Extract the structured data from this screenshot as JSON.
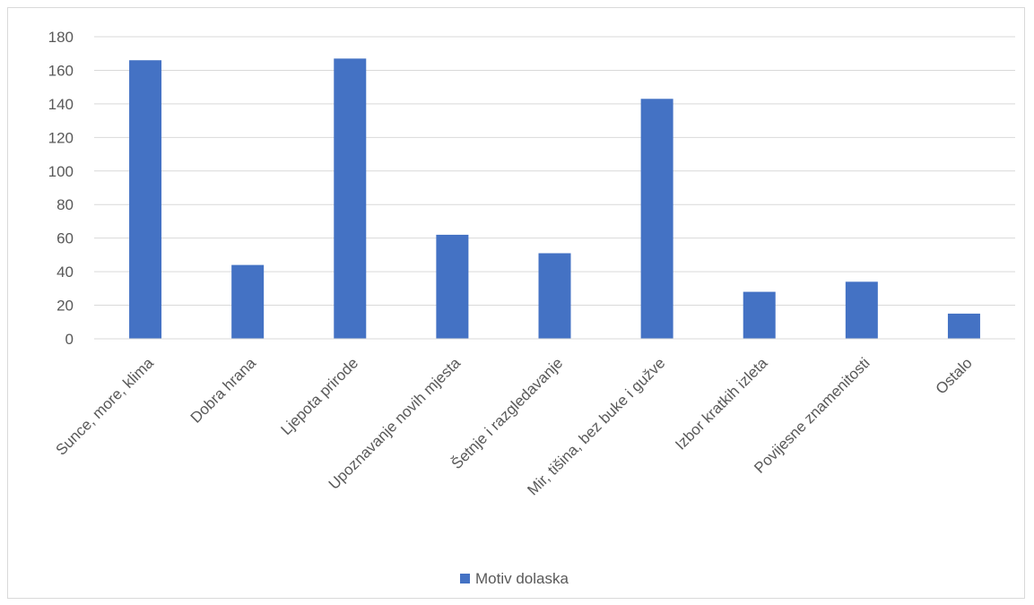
{
  "chart_data": {
    "type": "bar",
    "categories": [
      "Sunce, more, klima",
      "Dobra hrana",
      "Ljepota prirode",
      "Upoznavanje novih mjesta",
      "Šetnje i razgledavanje",
      "Mir, tišina, bez buke i gužve",
      "Izbor kratkih izleta",
      "Povijesne znamenitosti",
      "Ostalo"
    ],
    "series": [
      {
        "name": "Motiv dolaska",
        "values": [
          166,
          44,
          167,
          62,
          51,
          143,
          28,
          34,
          15
        ],
        "color": "#4472c4"
      }
    ],
    "ylim": [
      0,
      180
    ],
    "yticks": [
      0,
      20,
      40,
      60,
      80,
      100,
      120,
      140,
      160,
      180
    ],
    "grid": true,
    "legend_position": "bottom",
    "title": "",
    "xlabel": "",
    "ylabel": ""
  }
}
